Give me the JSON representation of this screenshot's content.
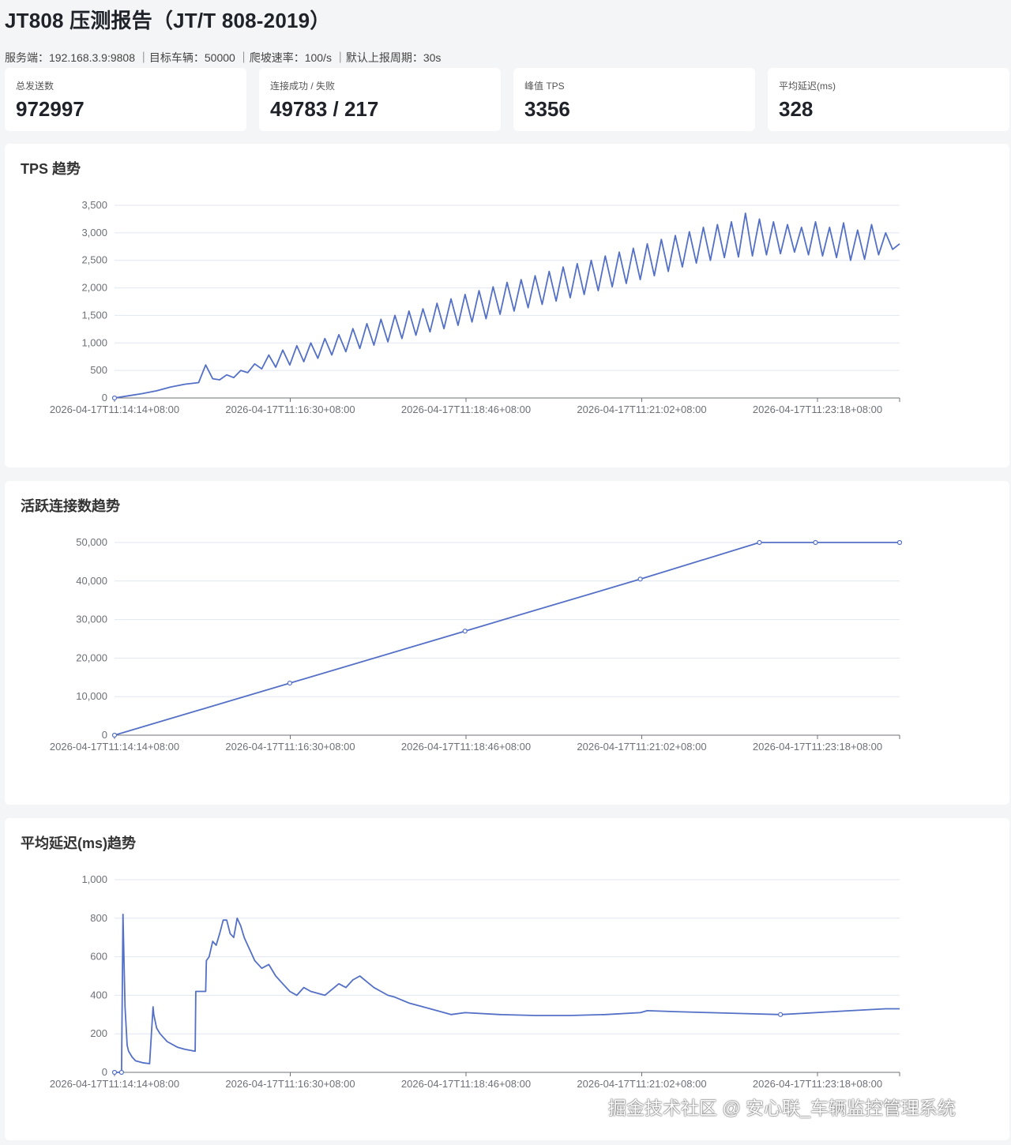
{
  "header": {
    "title": "JT808 压测报告（JT/T 808-2019）",
    "subtitle": "服务端：192.168.3.9:9808 ｜目标车辆：50000 ｜爬坡速率：100/s ｜默认上报周期：30s"
  },
  "stats": [
    {
      "label": "总发送数",
      "value": "972997"
    },
    {
      "label": "连接成功 / 失败",
      "value": "49783 / 217"
    },
    {
      "label": "峰值 TPS",
      "value": "3356"
    },
    {
      "label": "平均延迟(ms)",
      "value": "328"
    }
  ],
  "colors": {
    "line": "#5470c6",
    "grid": "#e0e6f1",
    "axis": "#6e7079"
  },
  "chart_data": [
    {
      "type": "line",
      "title": "TPS 趋势",
      "x_ticks": [
        "2026-04-17T11:14:14+08:00",
        "2026-04-17T11:16:30+08:00",
        "2026-04-17T11:18:46+08:00",
        "2026-04-17T11:21:02+08:00",
        "2026-04-17T11:23:18+08:00"
      ],
      "y_ticks": [
        "0",
        "500",
        "1,000",
        "1,500",
        "2,000",
        "2,500",
        "3,000",
        "3,500"
      ],
      "ylim": [
        0,
        3500
      ],
      "x_range_min": [
        0,
        11.2
      ],
      "series": [
        {
          "name": "TPS",
          "x": [
            0,
            0.2,
            0.4,
            0.6,
            0.8,
            1.0,
            1.2,
            1.3,
            1.4,
            1.5,
            1.6,
            1.7,
            1.8,
            1.9,
            2.0,
            2.1,
            2.2,
            2.3,
            2.4,
            2.5,
            2.6,
            2.7,
            2.8,
            2.9,
            3.0,
            3.1,
            3.2,
            3.3,
            3.4,
            3.5,
            3.6,
            3.7,
            3.8,
            3.9,
            4.0,
            4.1,
            4.2,
            4.3,
            4.4,
            4.5,
            4.6,
            4.7,
            4.8,
            4.9,
            5.0,
            5.1,
            5.2,
            5.3,
            5.4,
            5.5,
            5.6,
            5.7,
            5.8,
            5.9,
            6.0,
            6.1,
            6.2,
            6.3,
            6.4,
            6.5,
            6.6,
            6.7,
            6.8,
            6.9,
            7.0,
            7.1,
            7.2,
            7.3,
            7.4,
            7.5,
            7.6,
            7.7,
            7.8,
            7.9,
            8.0,
            8.1,
            8.2,
            8.3,
            8.4,
            8.5,
            8.6,
            8.7,
            8.8,
            8.9,
            9.0,
            9.1,
            9.2,
            9.3,
            9.4,
            9.5,
            9.6,
            9.7,
            9.8,
            9.9,
            10.0,
            10.1,
            10.2,
            10.3,
            10.4,
            10.5,
            10.6,
            10.7,
            10.8,
            10.9,
            11.0,
            11.1,
            11.2
          ],
          "values": [
            0,
            40,
            80,
            130,
            200,
            250,
            280,
            600,
            350,
            330,
            420,
            370,
            500,
            460,
            620,
            530,
            780,
            560,
            870,
            600,
            950,
            660,
            1000,
            720,
            1080,
            780,
            1150,
            840,
            1260,
            900,
            1350,
            960,
            1430,
            1020,
            1500,
            1080,
            1580,
            1140,
            1620,
            1200,
            1720,
            1260,
            1800,
            1320,
            1880,
            1380,
            1950,
            1440,
            2020,
            1520,
            2100,
            1580,
            2150,
            1640,
            2220,
            1700,
            2300,
            1760,
            2380,
            1820,
            2440,
            1880,
            2500,
            1950,
            2580,
            2020,
            2650,
            2080,
            2720,
            2150,
            2800,
            2220,
            2880,
            2300,
            2950,
            2380,
            3020,
            2450,
            3100,
            2500,
            3150,
            2550,
            3200,
            2560,
            3356,
            2580,
            3250,
            2600,
            3200,
            2620,
            3150,
            2650,
            3100,
            2600,
            3200,
            2580,
            3100,
            2550,
            3180,
            2500,
            3050,
            2520,
            3150,
            2600,
            3000,
            2700,
            2800
          ]
        }
      ]
    },
    {
      "type": "line",
      "title": "活跃连接数趋势",
      "x_ticks": [
        "2026-04-17T11:14:14+08:00",
        "2026-04-17T11:16:30+08:00",
        "2026-04-17T11:18:46+08:00",
        "2026-04-17T11:21:02+08:00",
        "2026-04-17T11:23:18+08:00"
      ],
      "y_ticks": [
        "0",
        "10,000",
        "20,000",
        "30,000",
        "40,000",
        "50,000"
      ],
      "ylim": [
        0,
        50000
      ],
      "series": [
        {
          "name": "活跃连接数",
          "x": [
            0,
            2.5,
            5.0,
            7.5,
            9.2,
            10.0,
            11.2
          ],
          "values": [
            0,
            13500,
            27000,
            40500,
            50000,
            50000,
            50000
          ]
        }
      ]
    },
    {
      "type": "line",
      "title": "平均延迟(ms)趋势",
      "x_ticks": [
        "2026-04-17T11:14:14+08:00",
        "2026-04-17T11:16:30+08:00",
        "2026-04-17T11:18:46+08:00",
        "2026-04-17T11:21:02+08:00",
        "2026-04-17T11:23:18+08:00"
      ],
      "y_ticks": [
        "0",
        "200",
        "400",
        "600",
        "800",
        "1,000"
      ],
      "ylim": [
        0,
        1000
      ],
      "series": [
        {
          "name": "平均延迟",
          "x": [
            0,
            0.1,
            0.12,
            0.15,
            0.18,
            0.2,
            0.25,
            0.3,
            0.4,
            0.5,
            0.55,
            0.56,
            0.6,
            0.65,
            0.75,
            0.9,
            1.0,
            1.15,
            1.16,
            1.18,
            1.3,
            1.31,
            1.35,
            1.4,
            1.45,
            1.5,
            1.55,
            1.6,
            1.65,
            1.7,
            1.75,
            1.8,
            1.85,
            1.9,
            1.95,
            2.0,
            2.1,
            2.2,
            2.3,
            2.4,
            2.5,
            2.6,
            2.7,
            2.8,
            3.0,
            3.2,
            3.3,
            3.4,
            3.5,
            3.6,
            3.7,
            3.8,
            3.9,
            4.0,
            4.2,
            4.4,
            4.6,
            4.8,
            5.0,
            5.5,
            6.0,
            6.5,
            7.0,
            7.5,
            7.6,
            8.0,
            8.5,
            9.0,
            9.5,
            10.0,
            10.5,
            11.0,
            11.2
          ],
          "values": [
            0,
            0,
            820,
            340,
            140,
            110,
            80,
            60,
            50,
            45,
            340,
            300,
            230,
            200,
            160,
            130,
            120,
            110,
            420,
            420,
            420,
            580,
            600,
            680,
            660,
            720,
            790,
            790,
            720,
            700,
            800,
            760,
            700,
            660,
            620,
            580,
            540,
            560,
            500,
            460,
            420,
            400,
            440,
            420,
            400,
            460,
            440,
            480,
            500,
            470,
            440,
            420,
            400,
            390,
            360,
            340,
            320,
            300,
            310,
            300,
            295,
            295,
            300,
            310,
            320,
            315,
            310,
            305,
            300,
            310,
            320,
            330,
            330
          ]
        }
      ]
    }
  ],
  "watermark": "掘金技术社区 @ 安心联_车辆监控管理系统"
}
